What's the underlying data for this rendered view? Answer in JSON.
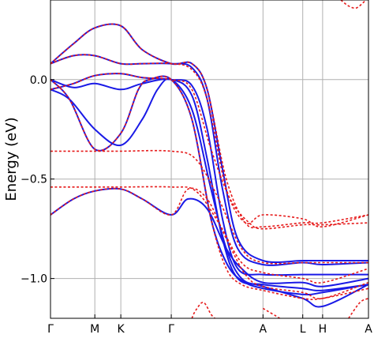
{
  "chart_data": {
    "type": "line",
    "ylabel": "Energy (eV)",
    "xlabel": "",
    "ylim": [
      -1.2,
      0.4
    ],
    "yticks": [
      {
        "value": 0.0,
        "label": "0.0"
      },
      {
        "value": -0.5,
        "label": "−0.5"
      },
      {
        "value": -1.0,
        "label": "−1.0"
      }
    ],
    "xlim": [
      0,
      4.16
    ],
    "kpoints": [
      {
        "label": "Γ",
        "x": 0.0
      },
      {
        "label": "M",
        "x": 0.58
      },
      {
        "label": "K",
        "x": 0.92
      },
      {
        "label": "Γ",
        "x": 1.58
      },
      {
        "label": "A",
        "x": 2.78
      },
      {
        "label": "L",
        "x": 3.3
      },
      {
        "label": "H",
        "x": 3.56
      },
      {
        "label": "A",
        "x": 4.16
      }
    ],
    "grid": true,
    "colors": {
      "solid": "#1a1ae6",
      "dashed": "#e61a1a",
      "gridline": "#b0b0b0"
    },
    "series": [
      {
        "style": "solid",
        "points": [
          [
            0,
            0.08
          ],
          [
            0.3,
            0.18
          ],
          [
            0.58,
            0.26
          ],
          [
            0.92,
            0.27
          ],
          [
            1.2,
            0.15
          ],
          [
            1.58,
            0.08
          ],
          [
            1.85,
            0.08
          ],
          [
            2.05,
            -0.05
          ],
          [
            2.25,
            -0.45
          ],
          [
            2.45,
            -0.8
          ],
          [
            2.78,
            -0.91
          ],
          [
            3.3,
            -0.91
          ],
          [
            3.56,
            -0.91
          ],
          [
            4.16,
            -0.91
          ]
        ]
      },
      {
        "style": "solid",
        "points": [
          [
            0,
            0.08
          ],
          [
            0.3,
            0.12
          ],
          [
            0.58,
            0.12
          ],
          [
            0.92,
            0.08
          ],
          [
            1.2,
            0.08
          ],
          [
            1.58,
            0.08
          ],
          [
            1.85,
            0.06
          ],
          [
            2.05,
            -0.1
          ],
          [
            2.25,
            -0.55
          ],
          [
            2.45,
            -0.85
          ],
          [
            2.78,
            -0.93
          ],
          [
            3.3,
            -0.92
          ],
          [
            3.56,
            -0.93
          ],
          [
            4.16,
            -0.92
          ]
        ]
      },
      {
        "style": "solid",
        "points": [
          [
            0,
            -0.05
          ],
          [
            0.3,
            -0.02
          ],
          [
            0.58,
            0.02
          ],
          [
            0.92,
            0.03
          ],
          [
            1.2,
            0.01
          ],
          [
            1.58,
            0.0
          ],
          [
            1.85,
            -0.03
          ],
          [
            2.05,
            -0.25
          ],
          [
            2.25,
            -0.7
          ],
          [
            2.45,
            -0.95
          ],
          [
            2.78,
            -0.98
          ],
          [
            3.3,
            -0.98
          ],
          [
            3.56,
            -0.98
          ],
          [
            4.16,
            -0.98
          ]
        ]
      },
      {
        "style": "solid",
        "points": [
          [
            0,
            0.0
          ],
          [
            0.3,
            -0.04
          ],
          [
            0.58,
            -0.02
          ],
          [
            0.92,
            -0.05
          ],
          [
            1.2,
            -0.02
          ],
          [
            1.58,
            0.0
          ],
          [
            1.85,
            -0.08
          ],
          [
            2.05,
            -0.4
          ],
          [
            2.25,
            -0.8
          ],
          [
            2.45,
            -1.0
          ],
          [
            2.78,
            -1.03
          ],
          [
            3.3,
            -1.05
          ],
          [
            3.56,
            -1.06
          ],
          [
            4.16,
            -1.03
          ]
        ]
      },
      {
        "style": "solid",
        "points": [
          [
            0,
            -0.05
          ],
          [
            0.25,
            -0.1
          ],
          [
            0.58,
            -0.25
          ],
          [
            0.92,
            -0.33
          ],
          [
            1.2,
            -0.2
          ],
          [
            1.4,
            -0.05
          ],
          [
            1.58,
            0.0
          ],
          [
            1.85,
            -0.15
          ],
          [
            2.1,
            -0.55
          ],
          [
            2.3,
            -0.85
          ],
          [
            2.5,
            -1.0
          ],
          [
            2.78,
            -1.04
          ],
          [
            3.3,
            -1.1
          ],
          [
            3.56,
            -1.14
          ],
          [
            4.16,
            -1.03
          ]
        ]
      },
      {
        "style": "solid",
        "points": [
          [
            0,
            0.0
          ],
          [
            0.25,
            -0.1
          ],
          [
            0.58,
            -0.35
          ],
          [
            0.92,
            -0.27
          ],
          [
            1.15,
            -0.05
          ],
          [
            1.3,
            0.0
          ],
          [
            1.58,
            0.0
          ],
          [
            1.85,
            -0.2
          ],
          [
            2.1,
            -0.7
          ],
          [
            2.3,
            -0.92
          ],
          [
            2.5,
            -1.01
          ],
          [
            2.78,
            -1.05
          ],
          [
            3.3,
            -1.08
          ],
          [
            3.56,
            -1.07
          ],
          [
            4.16,
            -1.03
          ]
        ]
      },
      {
        "style": "solid",
        "points": [
          [
            0,
            -0.68
          ],
          [
            0.3,
            -0.6
          ],
          [
            0.58,
            -0.56
          ],
          [
            0.92,
            -0.55
          ],
          [
            1.2,
            -0.6
          ],
          [
            1.58,
            -0.68
          ],
          [
            1.8,
            -0.6
          ],
          [
            2.05,
            -0.65
          ],
          [
            2.3,
            -0.85
          ],
          [
            2.5,
            -0.95
          ],
          [
            2.78,
            -1.02
          ],
          [
            3.3,
            -1.02
          ],
          [
            3.56,
            -1.04
          ],
          [
            4.16,
            -1.0
          ]
        ]
      },
      {
        "style": "dashed",
        "points": [
          [
            0,
            0.08
          ],
          [
            0.3,
            0.18
          ],
          [
            0.58,
            0.26
          ],
          [
            0.92,
            0.27
          ],
          [
            1.2,
            0.15
          ],
          [
            1.58,
            0.08
          ],
          [
            1.85,
            0.08
          ],
          [
            2.05,
            -0.05
          ],
          [
            2.3,
            -0.5
          ],
          [
            2.55,
            -0.72
          ],
          [
            2.78,
            -0.74
          ],
          [
            3.3,
            -0.72
          ],
          [
            3.56,
            -0.72
          ],
          [
            4.16,
            -0.68
          ]
        ]
      },
      {
        "style": "dashed",
        "points": [
          [
            0,
            0.08
          ],
          [
            0.3,
            0.12
          ],
          [
            0.58,
            0.12
          ],
          [
            0.92,
            0.08
          ],
          [
            1.2,
            0.08
          ],
          [
            1.58,
            0.08
          ],
          [
            1.85,
            0.05
          ],
          [
            2.05,
            -0.1
          ],
          [
            2.3,
            -0.55
          ],
          [
            2.55,
            -0.72
          ],
          [
            2.78,
            -0.68
          ],
          [
            3.3,
            -0.7
          ],
          [
            3.56,
            -0.74
          ],
          [
            4.16,
            -0.68
          ]
        ]
      },
      {
        "style": "dashed",
        "points": [
          [
            0,
            -0.05
          ],
          [
            0.3,
            -0.02
          ],
          [
            0.58,
            0.02
          ],
          [
            0.92,
            0.03
          ],
          [
            1.2,
            0.01
          ],
          [
            1.58,
            0.0
          ],
          [
            1.85,
            -0.05
          ],
          [
            2.1,
            -0.35
          ],
          [
            2.35,
            -0.6
          ],
          [
            2.6,
            -0.72
          ],
          [
            2.78,
            -0.75
          ],
          [
            3.3,
            -0.73
          ],
          [
            3.56,
            -0.73
          ],
          [
            4.16,
            -0.72
          ]
        ]
      },
      {
        "style": "dashed",
        "points": [
          [
            0,
            -0.36
          ],
          [
            0.58,
            -0.36
          ],
          [
            0.92,
            -0.36
          ],
          [
            1.58,
            -0.36
          ],
          [
            1.9,
            -0.4
          ],
          [
            2.2,
            -0.6
          ],
          [
            2.5,
            -0.85
          ],
          [
            2.78,
            -0.92
          ],
          [
            3.3,
            -0.92
          ],
          [
            3.56,
            -0.92
          ],
          [
            4.16,
            -0.92
          ]
        ]
      },
      {
        "style": "dashed",
        "points": [
          [
            0,
            -0.54
          ],
          [
            0.58,
            -0.54
          ],
          [
            0.92,
            -0.54
          ],
          [
            1.58,
            -0.54
          ],
          [
            1.9,
            -0.56
          ],
          [
            2.2,
            -0.72
          ],
          [
            2.5,
            -0.92
          ],
          [
            2.78,
            -0.97
          ],
          [
            3.3,
            -1.0
          ],
          [
            3.56,
            -1.02
          ],
          [
            4.16,
            -0.95
          ]
        ]
      },
      {
        "style": "dashed",
        "points": [
          [
            0,
            -0.68
          ],
          [
            0.3,
            -0.6
          ],
          [
            0.58,
            -0.56
          ],
          [
            0.92,
            -0.55
          ],
          [
            1.2,
            -0.6
          ],
          [
            1.58,
            -0.68
          ],
          [
            1.8,
            -0.55
          ],
          [
            2.05,
            -0.6
          ],
          [
            2.3,
            -0.8
          ],
          [
            2.55,
            -0.98
          ],
          [
            2.78,
            -1.04
          ],
          [
            3.3,
            -1.07
          ],
          [
            3.56,
            -1.1
          ],
          [
            4.16,
            -1.02
          ]
        ]
      },
      {
        "style": "dashed",
        "points": [
          [
            0,
            0.0
          ],
          [
            0.25,
            -0.1
          ],
          [
            0.58,
            -0.35
          ],
          [
            0.92,
            -0.27
          ],
          [
            1.15,
            -0.05
          ],
          [
            1.3,
            0.0
          ],
          [
            1.58,
            0.0
          ],
          [
            1.85,
            -0.2
          ],
          [
            2.1,
            -0.7
          ],
          [
            2.3,
            -0.95
          ],
          [
            2.5,
            -1.03
          ],
          [
            2.78,
            -1.06
          ],
          [
            3.3,
            -1.1
          ],
          [
            3.56,
            -1.1
          ],
          [
            4.16,
            -1.05
          ]
        ]
      },
      {
        "style": "dashed",
        "points": [
          [
            1.85,
            -1.2
          ],
          [
            1.9,
            -1.16
          ],
          [
            2.0,
            -1.12
          ],
          [
            2.1,
            -1.18
          ],
          [
            2.15,
            -1.2
          ]
        ]
      },
      {
        "style": "dashed",
        "points": [
          [
            3.8,
            0.4
          ],
          [
            3.9,
            0.37
          ],
          [
            4.0,
            0.36
          ],
          [
            4.1,
            0.39
          ],
          [
            4.12,
            0.4
          ]
        ]
      },
      {
        "style": "dashed",
        "points": [
          [
            2.78,
            -1.15
          ],
          [
            3.0,
            -1.2
          ]
        ]
      },
      {
        "style": "dashed",
        "points": [
          [
            3.9,
            -1.2
          ],
          [
            4.05,
            -1.12
          ],
          [
            4.16,
            -1.1
          ]
        ]
      }
    ]
  }
}
